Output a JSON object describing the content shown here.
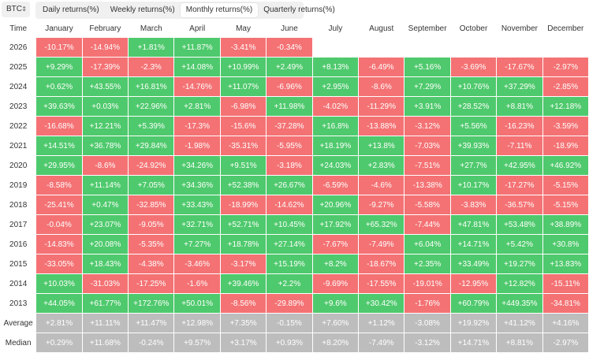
{
  "asset_select": {
    "value": "BTC"
  },
  "tabs": [
    {
      "label": "Daily returns(%)",
      "active": false
    },
    {
      "label": "Weekly returns(%)",
      "active": false
    },
    {
      "label": "Monthly returns(%)",
      "active": true
    },
    {
      "label": "Quarterly returns(%)",
      "active": false
    }
  ],
  "colors": {
    "positive": "#4fc96d",
    "negative": "#f47274",
    "stat": "#bdbdbd"
  },
  "table": {
    "headers": [
      "Time",
      "January",
      "February",
      "March",
      "April",
      "May",
      "June",
      "July",
      "August",
      "September",
      "October",
      "November",
      "December"
    ],
    "rows": [
      {
        "year": "2026",
        "values": [
          "-10.17%",
          "-14.94%",
          "+1.81%",
          "+11.87%",
          "-3.41%",
          "-0.34%",
          "",
          "",
          "",
          "",
          "",
          ""
        ]
      },
      {
        "year": "2025",
        "values": [
          "+9.29%",
          "-17.39%",
          "-2.3%",
          "+14.08%",
          "+10.99%",
          "+2.49%",
          "+8.13%",
          "-6.49%",
          "+5.16%",
          "-3.69%",
          "-17.67%",
          "-2.97%"
        ]
      },
      {
        "year": "2024",
        "values": [
          "+0.62%",
          "+43.55%",
          "+16.81%",
          "-14.76%",
          "+11.07%",
          "-6.96%",
          "+2.95%",
          "-8.6%",
          "+7.29%",
          "+10.76%",
          "+37.29%",
          "-2.85%"
        ]
      },
      {
        "year": "2023",
        "values": [
          "+39.63%",
          "+0.03%",
          "+22.96%",
          "+2.81%",
          "-6.98%",
          "+11.98%",
          "-4.02%",
          "-11.29%",
          "+3.91%",
          "+28.52%",
          "+8.81%",
          "+12.18%"
        ]
      },
      {
        "year": "2022",
        "values": [
          "-16.68%",
          "+12.21%",
          "+5.39%",
          "-17.3%",
          "-15.6%",
          "-37.28%",
          "+16.8%",
          "-13.88%",
          "-3.12%",
          "+5.56%",
          "-16.23%",
          "-3.59%"
        ]
      },
      {
        "year": "2021",
        "values": [
          "+14.51%",
          "+36.78%",
          "+29.84%",
          "-1.98%",
          "-35.31%",
          "-5.95%",
          "+18.19%",
          "+13.8%",
          "-7.03%",
          "+39.93%",
          "-7.11%",
          "-18.9%"
        ]
      },
      {
        "year": "2020",
        "values": [
          "+29.95%",
          "-8.6%",
          "-24.92%",
          "+34.26%",
          "+9.51%",
          "-3.18%",
          "+24.03%",
          "+2.83%",
          "-7.51%",
          "+27.7%",
          "+42.95%",
          "+46.92%"
        ]
      },
      {
        "year": "2019",
        "values": [
          "-8.58%",
          "+11.14%",
          "+7.05%",
          "+34.36%",
          "+52.38%",
          "+26.67%",
          "-6.59%",
          "-4.6%",
          "-13.38%",
          "+10.17%",
          "-17.27%",
          "-5.15%"
        ]
      },
      {
        "year": "2018",
        "values": [
          "-25.41%",
          "+0.47%",
          "-32.85%",
          "+33.43%",
          "-18.99%",
          "-14.62%",
          "+20.96%",
          "-9.27%",
          "-5.58%",
          "-3.83%",
          "-36.57%",
          "-5.15%"
        ]
      },
      {
        "year": "2017",
        "values": [
          "-0.04%",
          "+23.07%",
          "-9.05%",
          "+32.71%",
          "+52.71%",
          "+10.45%",
          "+17.92%",
          "+65.32%",
          "-7.44%",
          "+47.81%",
          "+53.48%",
          "+38.89%"
        ]
      },
      {
        "year": "2016",
        "values": [
          "-14.83%",
          "+20.08%",
          "-5.35%",
          "+7.27%",
          "+18.78%",
          "+27.14%",
          "-7.67%",
          "-7.49%",
          "+6.04%",
          "+14.71%",
          "+5.42%",
          "+30.8%"
        ]
      },
      {
        "year": "2015",
        "values": [
          "-33.05%",
          "+18.43%",
          "-4.38%",
          "-3.46%",
          "-3.17%",
          "+15.19%",
          "+8.2%",
          "-18.67%",
          "+2.35%",
          "+33.49%",
          "+19.27%",
          "+13.83%"
        ]
      },
      {
        "year": "2014",
        "values": [
          "+10.03%",
          "-31.03%",
          "-17.25%",
          "-1.6%",
          "+39.46%",
          "+2.2%",
          "-9.69%",
          "-17.55%",
          "-19.01%",
          "-12.95%",
          "+12.82%",
          "-15.11%"
        ]
      },
      {
        "year": "2013",
        "values": [
          "+44.05%",
          "+61.77%",
          "+172.76%",
          "+50.01%",
          "-8.56%",
          "-29.89%",
          "+9.6%",
          "+30.42%",
          "-1.76%",
          "+60.79%",
          "+449.35%",
          "-34.81%"
        ]
      }
    ],
    "stats": [
      {
        "label": "Average",
        "values": [
          "+2.81%",
          "+11.11%",
          "+11.47%",
          "+12.98%",
          "+7.35%",
          "-0.15%",
          "+7.60%",
          "+1.12%",
          "-3.08%",
          "+19.92%",
          "+41.12%",
          "+4.16%"
        ]
      },
      {
        "label": "Median",
        "values": [
          "+0.29%",
          "+11.68%",
          "-0.24%",
          "+9.57%",
          "+3.17%",
          "+0.93%",
          "+8.20%",
          "-7.49%",
          "-3.12%",
          "+14.71%",
          "+8.81%",
          "-2.97%"
        ]
      }
    ]
  }
}
